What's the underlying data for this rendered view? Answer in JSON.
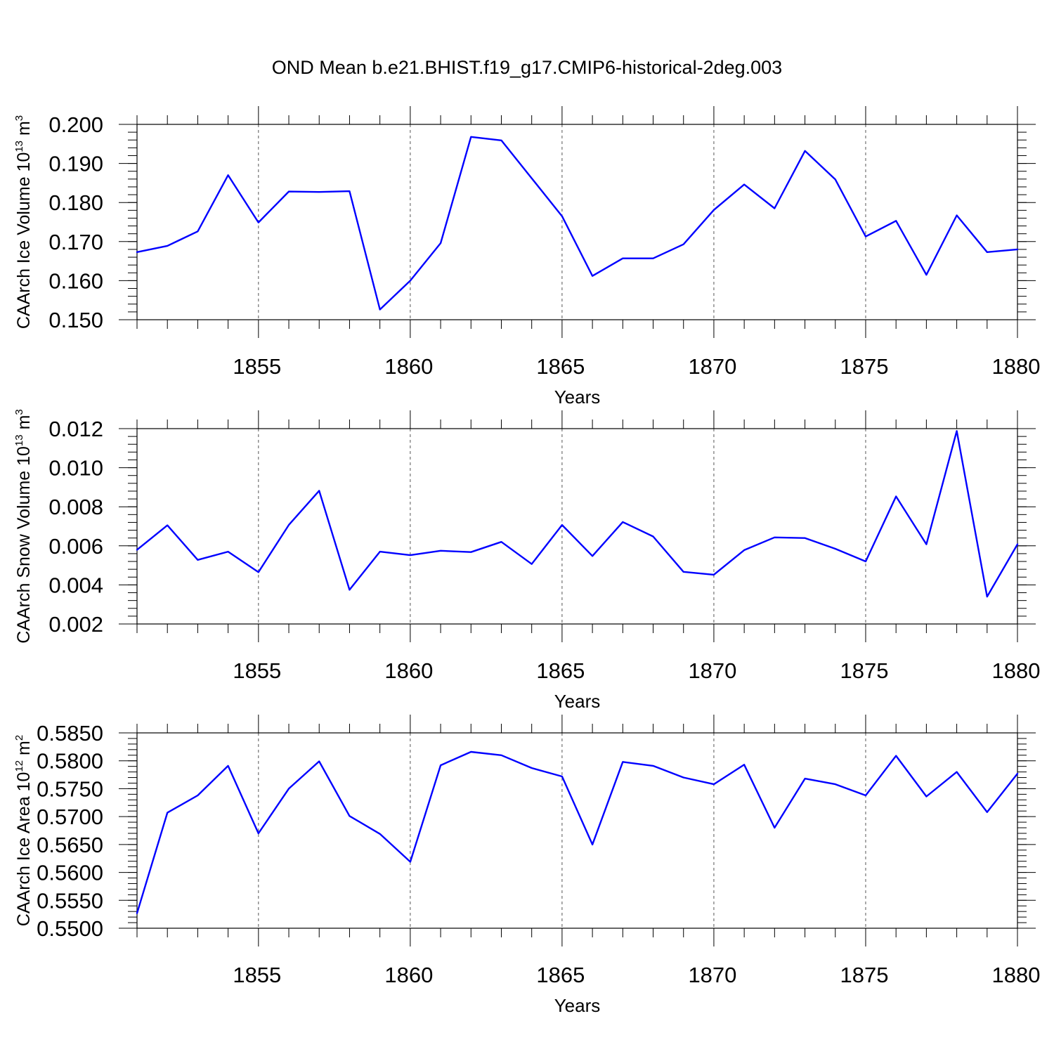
{
  "figure": {
    "title": "OND Mean b.e21.BHIST.f19_g17.CMIP6-historical-2deg.003"
  },
  "chart_data": [
    {
      "type": "line",
      "ylabel": "CAArch Ice Volume 10",
      "ylabel_exponent": "13",
      "ylabel_unit": " m",
      "ylabel_unit_exponent": "3",
      "xlabel": "Years",
      "xlim": [
        1851,
        1880
      ],
      "ylim": [
        0.15,
        0.2
      ],
      "x_ticks": [
        1855,
        1860,
        1865,
        1870,
        1875,
        1880
      ],
      "x_tick_labels": [
        "1855",
        "1860",
        "1865",
        "1870",
        "1875",
        "1880"
      ],
      "y_ticks": [
        0.15,
        0.16,
        0.17,
        0.18,
        0.19,
        0.2
      ],
      "y_tick_labels": [
        "0.150",
        "0.160",
        "0.170",
        "0.180",
        "0.190",
        "0.200"
      ],
      "y_minor_step": 0.002,
      "grid": "vertical dashed at major x ticks",
      "series": [
        {
          "color": "#0000ff",
          "x": [
            1851,
            1852,
            1853,
            1854,
            1855,
            1856,
            1857,
            1858,
            1859,
            1860,
            1861,
            1862,
            1863,
            1864,
            1865,
            1866,
            1867,
            1868,
            1869,
            1870,
            1871,
            1872,
            1873,
            1874,
            1875,
            1876,
            1877,
            1878,
            1879,
            1880
          ],
          "values": [
            0.1673,
            0.1689,
            0.1726,
            0.187,
            0.1749,
            0.1828,
            0.1827,
            0.1829,
            0.1526,
            0.16,
            0.1696,
            0.1968,
            0.1959,
            0.1862,
            0.1765,
            0.1612,
            0.1657,
            0.1657,
            0.1693,
            0.1781,
            0.1846,
            0.1785,
            0.1932,
            0.1859,
            0.1713,
            0.1753,
            0.1615,
            0.1767,
            0.1673,
            0.168
          ]
        }
      ]
    },
    {
      "type": "line",
      "ylabel": "CAArch Snow Volume 10",
      "ylabel_exponent": "13",
      "ylabel_unit": " m",
      "ylabel_unit_exponent": "3",
      "xlabel": "Years",
      "xlim": [
        1851,
        1880
      ],
      "ylim": [
        0.002,
        0.012
      ],
      "x_ticks": [
        1855,
        1860,
        1865,
        1870,
        1875,
        1880
      ],
      "x_tick_labels": [
        "1855",
        "1860",
        "1865",
        "1870",
        "1875",
        "1880"
      ],
      "y_ticks": [
        0.002,
        0.004,
        0.006,
        0.008,
        0.01,
        0.012
      ],
      "y_tick_labels": [
        "0.002",
        "0.004",
        "0.006",
        "0.008",
        "0.010",
        "0.012"
      ],
      "y_minor_step": 0.0004,
      "grid": "vertical dashed at major x ticks",
      "series": [
        {
          "color": "#0000ff",
          "x": [
            1851,
            1852,
            1853,
            1854,
            1855,
            1856,
            1857,
            1858,
            1859,
            1860,
            1861,
            1862,
            1863,
            1864,
            1865,
            1866,
            1867,
            1868,
            1869,
            1870,
            1871,
            1872,
            1873,
            1874,
            1875,
            1876,
            1877,
            1878,
            1879,
            1880
          ],
          "values": [
            0.0058,
            0.00705,
            0.00528,
            0.0057,
            0.00465,
            0.00707,
            0.00882,
            0.00375,
            0.0057,
            0.00552,
            0.00575,
            0.00568,
            0.0062,
            0.00507,
            0.00707,
            0.00548,
            0.00722,
            0.00648,
            0.00467,
            0.00452,
            0.00578,
            0.00643,
            0.0064,
            0.00585,
            0.0052,
            0.00853,
            0.00608,
            0.01188,
            0.0034,
            0.00608
          ]
        }
      ]
    },
    {
      "type": "line",
      "ylabel": "CAArch Ice Area 10",
      "ylabel_exponent": "12",
      "ylabel_unit": " m",
      "ylabel_unit_exponent": "2",
      "xlabel": "Years",
      "xlim": [
        1851,
        1880
      ],
      "ylim": [
        0.55,
        0.585
      ],
      "x_ticks": [
        1855,
        1860,
        1865,
        1870,
        1875,
        1880
      ],
      "x_tick_labels": [
        "1855",
        "1860",
        "1865",
        "1870",
        "1875",
        "1880"
      ],
      "y_ticks": [
        0.55,
        0.555,
        0.56,
        0.565,
        0.57,
        0.575,
        0.58,
        0.585
      ],
      "y_tick_labels": [
        "0.5500",
        "0.5550",
        "0.5600",
        "0.5650",
        "0.5700",
        "0.5750",
        "0.5800",
        "0.5850"
      ],
      "y_minor_step": 0.001,
      "grid": "vertical dashed at major x ticks",
      "series": [
        {
          "color": "#0000ff",
          "x": [
            1851,
            1852,
            1853,
            1854,
            1855,
            1856,
            1857,
            1858,
            1859,
            1860,
            1861,
            1862,
            1863,
            1864,
            1865,
            1866,
            1867,
            1868,
            1869,
            1870,
            1871,
            1872,
            1873,
            1874,
            1875,
            1876,
            1877,
            1878,
            1879,
            1880
          ],
          "values": [
            0.5527,
            0.5707,
            0.5738,
            0.5791,
            0.567,
            0.575,
            0.5799,
            0.5701,
            0.5669,
            0.5619,
            0.5792,
            0.5816,
            0.581,
            0.5787,
            0.5772,
            0.565,
            0.5798,
            0.5791,
            0.577,
            0.5758,
            0.5793,
            0.568,
            0.5768,
            0.5758,
            0.5738,
            0.5809,
            0.5736,
            0.578,
            0.5708,
            0.5777
          ]
        }
      ]
    }
  ]
}
